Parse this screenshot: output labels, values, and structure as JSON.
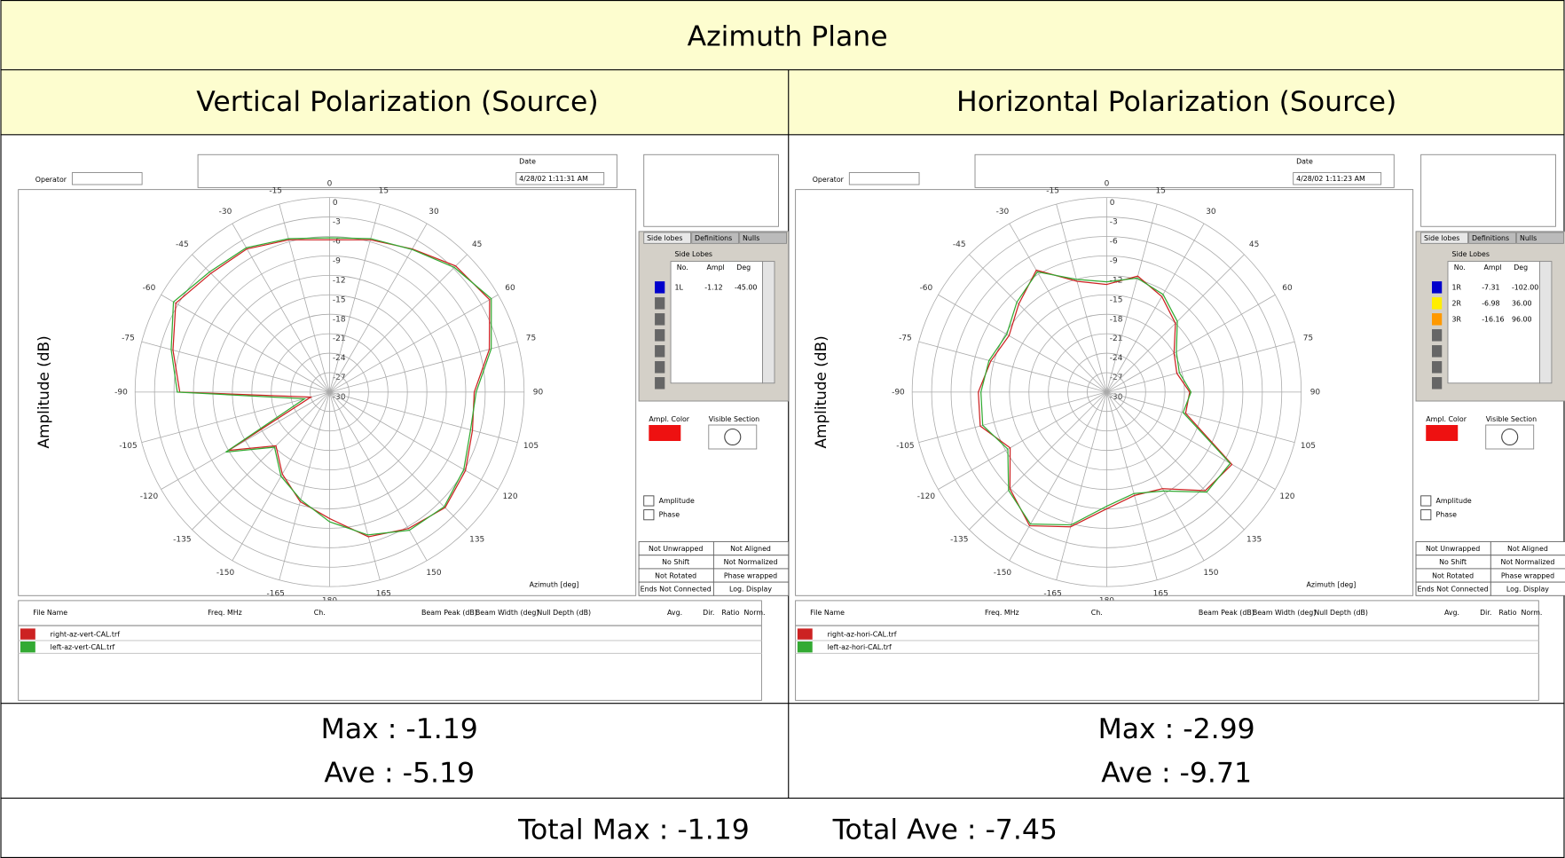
{
  "header": {
    "title": "Azimuth Plane"
  },
  "panels": [
    {
      "heading": "Vertical Polarization (Source)",
      "operator_label": "Operator",
      "date_label": "Date",
      "date": "4/28/02 1:11:31 AM",
      "tabs": [
        "Side lobes",
        "Definitions",
        "Nulls"
      ],
      "side_lobes": {
        "title": "Side Lobes",
        "columns": [
          "No.",
          "Ampl",
          "Deg"
        ],
        "rows": [
          [
            "1L",
            "-1.12",
            "-45.00"
          ]
        ],
        "colors": [
          "#0000cc"
        ]
      },
      "amp_color_label": "Ampl. Color",
      "visible_label": "Visible Section",
      "checks": [
        "Amplitude",
        "Phase"
      ],
      "status": [
        "Not Unwrapped",
        "Not Aligned",
        "No Shift",
        "Not Normalized",
        "Not Rotated",
        "Phase wrapped",
        "Ends Not Connected",
        "Log. Display"
      ],
      "file_columns": [
        "File Name",
        "Freq. MHz",
        "Ch.",
        "Beam Peak (dB)",
        "Beam Width (deg)",
        "Null Depth (dB)",
        "Avg.",
        "Dir.",
        "Ratio",
        "Norm."
      ],
      "max": "Max : -1.19",
      "ave": "Ave : -5.19"
    },
    {
      "heading": "Horizontal Polarization (Source)",
      "operator_label": "Operator",
      "date_label": "Date",
      "date": "4/28/02 1:11:23 AM",
      "tabs": [
        "Side lobes",
        "Definitions",
        "Nulls"
      ],
      "side_lobes": {
        "title": "Side Lobes",
        "columns": [
          "No.",
          "Ampl",
          "Deg"
        ],
        "rows": [
          [
            "1R",
            "-7.31",
            "-102.00"
          ],
          [
            "2R",
            "-6.98",
            "36.00"
          ],
          [
            "3R",
            "-16.16",
            "96.00"
          ]
        ],
        "colors": [
          "#0000cc",
          "#ffee00",
          "#ff9900"
        ]
      },
      "amp_color_label": "Ampl. Color",
      "visible_label": "Visible Section",
      "checks": [
        "Amplitude",
        "Phase"
      ],
      "status": [
        "Not Unwrapped",
        "Not Aligned",
        "No Shift",
        "Not Normalized",
        "Not Rotated",
        "Phase wrapped",
        "Ends Not Connected",
        "Log. Display"
      ],
      "file_columns": [
        "File Name",
        "Freq. MHz",
        "Ch.",
        "Beam Peak (dB)",
        "Beam Width (deg)",
        "Null Depth (dB)",
        "Avg.",
        "Dir.",
        "Ratio",
        "Norm."
      ],
      "max": "Max : -2.99",
      "ave": "Ave : -9.71"
    }
  ],
  "footer": {
    "total_max": "Total Max : -1.19",
    "total_ave": "Total Ave : -7.45"
  },
  "chart_data": [
    {
      "type": "polar",
      "xlabel": "Azimuth [deg]",
      "ylabel": "Amplitude (dB)",
      "x": [
        0,
        15,
        30,
        45,
        60,
        75,
        90,
        105,
        120,
        135,
        150,
        165,
        180,
        -165,
        -150,
        -135,
        -120,
        -105,
        -90,
        -75,
        -60,
        -45,
        -30,
        -15
      ],
      "xticks": [
        0,
        15,
        30,
        45,
        60,
        75,
        90,
        105,
        120,
        135,
        150,
        165,
        180,
        -165,
        -150,
        -135,
        -120,
        -105,
        -90,
        -75,
        -60,
        -45,
        -30,
        -15
      ],
      "ylim": [
        -30,
        0
      ],
      "yticks": [
        0,
        -3,
        -6,
        -9,
        -12,
        -15,
        -18,
        -21,
        -24,
        -27,
        -30
      ],
      "series": [
        {
          "name": "right-az-vert-CAL.trf",
          "color": "#cc2222",
          "values": [
            -6.5,
            -5.7,
            -4.5,
            -2.5,
            -1.5,
            -4.5,
            -7.7,
            -7.2,
            -5.8,
            -4.8,
            -5.7,
            -6.9,
            -10.5,
            -12.5,
            -15.4,
            -18.3,
            -12,
            -27,
            -6.9,
            -5,
            -2.6,
            -4.1,
            -4.5,
            -5.7
          ]
        },
        {
          "name": "left-az-vert-CAL.trf",
          "color": "#33aa33",
          "values": [
            -6.2,
            -5.5,
            -4.6,
            -2.8,
            -1.2,
            -4.2,
            -7.4,
            -7.5,
            -6.1,
            -5,
            -5.4,
            -7.2,
            -10,
            -12.8,
            -15,
            -18,
            -11.5,
            -26,
            -6.5,
            -4.7,
            -2.2,
            -3.8,
            -4.3,
            -5.5
          ]
        }
      ]
    },
    {
      "type": "polar",
      "xlabel": "Azimuth [deg]",
      "ylabel": "Amplitude (dB)",
      "x": [
        0,
        15,
        30,
        45,
        60,
        75,
        90,
        105,
        120,
        135,
        150,
        165,
        180,
        -165,
        -150,
        -135,
        -120,
        -105,
        -90,
        -75,
        -60,
        -45,
        -30,
        -15
      ],
      "xticks": [
        0,
        15,
        30,
        45,
        60,
        75,
        90,
        105,
        120,
        135,
        150,
        165,
        180,
        -165,
        -150,
        -135,
        -120,
        -105,
        -90,
        -75,
        -60,
        -45,
        -30,
        -15
      ],
      "ylim": [
        -30,
        0
      ],
      "yticks": [
        0,
        -3,
        -6,
        -9,
        -12,
        -15,
        -18,
        -21,
        -24,
        -27,
        -30
      ],
      "series": [
        {
          "name": "right-az-hori-CAL.trf",
          "color": "#cc2222",
          "values": [
            -13.4,
            -11.5,
            -13,
            -15,
            -18,
            -18.8,
            -17.2,
            -17.4,
            -7.7,
            -8.5,
            -12.8,
            -13.5,
            -12,
            -8.5,
            -6.2,
            -8.9,
            -12.8,
            -9.8,
            -10.2,
            -11.5,
            -12.6,
            -10.8,
            -8.3,
            -12.3
          ]
        },
        {
          "name": "left-az-hori-CAL.trf",
          "color": "#33aa33",
          "values": [
            -13,
            -11.8,
            -12.6,
            -14.6,
            -17.6,
            -18.4,
            -17,
            -17.8,
            -8,
            -8.2,
            -12.4,
            -13.8,
            -12.4,
            -8.8,
            -6.5,
            -8.6,
            -12.4,
            -10.2,
            -10.6,
            -11.2,
            -12.2,
            -10.4,
            -8.6,
            -12
          ]
        }
      ]
    }
  ]
}
